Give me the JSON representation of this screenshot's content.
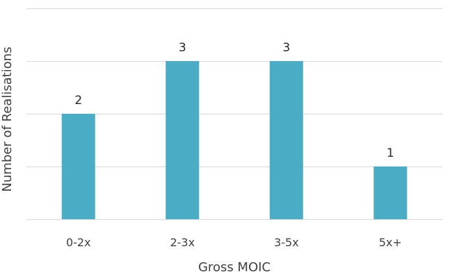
{
  "chart_data": {
    "type": "bar",
    "categories": [
      "0-2x",
      "2-3x",
      "3-5x",
      "5x+"
    ],
    "values": [
      2,
      3,
      3,
      1
    ],
    "data_labels": [
      "2",
      "3",
      "3",
      "1"
    ],
    "title": "",
    "xlabel": "Gross MOIC",
    "ylabel": "Number of Realisations",
    "ylim": [
      0,
      4
    ],
    "grid": true,
    "legend": "none",
    "colors": {
      "bar": "#4BACC6",
      "gridline": "#D9D9D9",
      "text": "#404040"
    }
  }
}
